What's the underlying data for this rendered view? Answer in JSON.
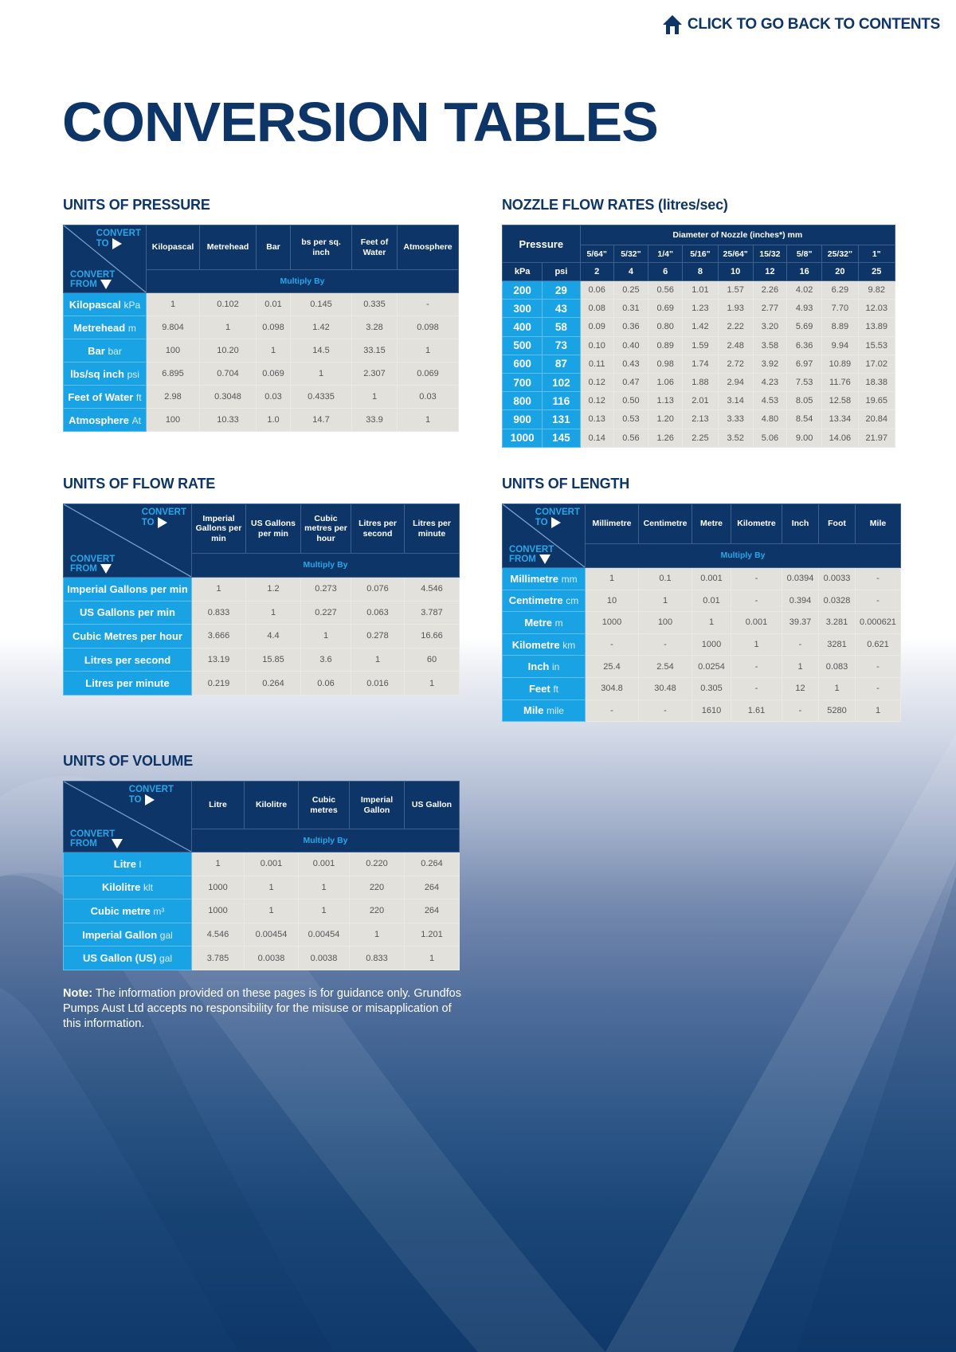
{
  "nav": {
    "back_link": "CLICK TO GO BACK TO CONTENTS",
    "icon": "home-icon"
  },
  "page_title": "CONVERSION TABLES",
  "corner": {
    "to_line1": "CONVERT",
    "to_line2": "TO",
    "from_line1": "CONVERT",
    "from_line2": "FROM"
  },
  "multiply_by": "Multiply By",
  "pressure": {
    "title": "UNITS OF PRESSURE",
    "columns": [
      "Kilopascal",
      "Metrehead",
      "Bar",
      "bs per sq. inch",
      "Feet of Water",
      "Atmosphere"
    ],
    "rows": [
      {
        "label": "Kilopascal",
        "unit": "kPa",
        "values": [
          "1",
          "0.102",
          "0.01",
          "0.145",
          "0.335",
          "-"
        ]
      },
      {
        "label": "Metrehead",
        "unit": "m",
        "values": [
          "9.804",
          "1",
          "0.098",
          "1.42",
          "3.28",
          "0.098"
        ]
      },
      {
        "label": "Bar",
        "unit": "bar",
        "values": [
          "100",
          "10.20",
          "1",
          "14.5",
          "33.15",
          "1"
        ]
      },
      {
        "label": "lbs/sq inch",
        "unit": "psi",
        "values": [
          "6.895",
          "0.704",
          "0.069",
          "1",
          "2.307",
          "0.069"
        ]
      },
      {
        "label": "Feet of Water",
        "unit": "ft",
        "values": [
          "2.98",
          "0.3048",
          "0.03",
          "0.4335",
          "1",
          "0.03"
        ]
      },
      {
        "label": "Atmosphere",
        "unit": "At",
        "values": [
          "100",
          "10.33",
          "1.0",
          "14.7",
          "33.9",
          "1"
        ]
      }
    ]
  },
  "nozzle": {
    "title": "NOZZLE FLOW RATES (litres/sec)",
    "pressure_label": "Pressure",
    "diameter_label": "Diameter of Nozzle (inches*) mm",
    "kpa_label": "kPa",
    "psi_label": "psi",
    "inches": [
      "5/64\"",
      "5/32\"",
      "1/4\"",
      "5/16\"",
      "25/64\"",
      "15/32",
      "5/8\"",
      "25/32\"",
      "1\""
    ],
    "mm": [
      "2",
      "4",
      "6",
      "8",
      "10",
      "12",
      "16",
      "20",
      "25"
    ],
    "rows": [
      {
        "kpa": "200",
        "psi": "29",
        "values": [
          "0.06",
          "0.25",
          "0.56",
          "1.01",
          "1.57",
          "2.26",
          "4.02",
          "6.29",
          "9.82"
        ]
      },
      {
        "kpa": "300",
        "psi": "43",
        "values": [
          "0.08",
          "0.31",
          "0.69",
          "1.23",
          "1.93",
          "2.77",
          "4.93",
          "7.70",
          "12.03"
        ]
      },
      {
        "kpa": "400",
        "psi": "58",
        "values": [
          "0.09",
          "0.36",
          "0.80",
          "1.42",
          "2.22",
          "3.20",
          "5.69",
          "8.89",
          "13.89"
        ]
      },
      {
        "kpa": "500",
        "psi": "73",
        "values": [
          "0.10",
          "0.40",
          "0.89",
          "1.59",
          "2.48",
          "3.58",
          "6.36",
          "9.94",
          "15.53"
        ]
      },
      {
        "kpa": "600",
        "psi": "87",
        "values": [
          "0.11",
          "0.43",
          "0.98",
          "1.74",
          "2.72",
          "3.92",
          "6.97",
          "10.89",
          "17.02"
        ]
      },
      {
        "kpa": "700",
        "psi": "102",
        "values": [
          "0.12",
          "0.47",
          "1.06",
          "1.88",
          "2.94",
          "4.23",
          "7.53",
          "11.76",
          "18.38"
        ]
      },
      {
        "kpa": "800",
        "psi": "116",
        "values": [
          "0.12",
          "0.50",
          "1.13",
          "2.01",
          "3.14",
          "4.53",
          "8.05",
          "12.58",
          "19.65"
        ]
      },
      {
        "kpa": "900",
        "psi": "131",
        "values": [
          "0.13",
          "0.53",
          "1.20",
          "2.13",
          "3.33",
          "4.80",
          "8.54",
          "13.34",
          "20.84"
        ]
      },
      {
        "kpa": "1000",
        "psi": "145",
        "values": [
          "0.14",
          "0.56",
          "1.26",
          "2.25",
          "3.52",
          "5.06",
          "9.00",
          "14.06",
          "21.97"
        ]
      }
    ]
  },
  "flow": {
    "title": "UNITS OF FLOW RATE",
    "columns": [
      "Imperial Gallons per min",
      "US Gallons per min",
      "Cubic metres per hour",
      "Litres per second",
      "Litres per minute"
    ],
    "rows": [
      {
        "label": "Imperial Gallons per min",
        "unit": "",
        "values": [
          "1",
          "1.2",
          "0.273",
          "0.076",
          "4.546"
        ]
      },
      {
        "label": "US Gallons per min",
        "unit": "",
        "values": [
          "0.833",
          "1",
          "0.227",
          "0.063",
          "3.787"
        ]
      },
      {
        "label": "Cubic Metres per hour",
        "unit": "",
        "values": [
          "3.666",
          "4.4",
          "1",
          "0.278",
          "16.66"
        ]
      },
      {
        "label": "Litres per second",
        "unit": "",
        "values": [
          "13.19",
          "15.85",
          "3.6",
          "1",
          "60"
        ]
      },
      {
        "label": "Litres per minute",
        "unit": "",
        "values": [
          "0.219",
          "0.264",
          "0.06",
          "0.016",
          "1"
        ]
      }
    ]
  },
  "length": {
    "title": "UNITS OF LENGTH",
    "columns": [
      "Millimetre",
      "Centimetre",
      "Metre",
      "Kilometre",
      "Inch",
      "Foot",
      "Mile"
    ],
    "rows": [
      {
        "label": "Millimetre",
        "unit": "mm",
        "values": [
          "1",
          "0.1",
          "0.001",
          "-",
          "0.0394",
          "0.0033",
          "-"
        ]
      },
      {
        "label": "Centimetre",
        "unit": "cm",
        "values": [
          "10",
          "1",
          "0.01",
          "-",
          "0.394",
          "0.0328",
          "-"
        ]
      },
      {
        "label": "Metre",
        "unit": "m",
        "values": [
          "1000",
          "100",
          "1",
          "0.001",
          "39.37",
          "3.281",
          "0.000621"
        ]
      },
      {
        "label": "Kilometre",
        "unit": "km",
        "values": [
          "-",
          "-",
          "1000",
          "1",
          "-",
          "3281",
          "0.621"
        ]
      },
      {
        "label": "Inch",
        "unit": "in",
        "values": [
          "25.4",
          "2.54",
          "0.0254",
          "-",
          "1",
          "0.083",
          "-"
        ]
      },
      {
        "label": "Feet",
        "unit": "ft",
        "values": [
          "304.8",
          "30.48",
          "0.305",
          "-",
          "12",
          "1",
          "-"
        ]
      },
      {
        "label": "Mile",
        "unit": "mile",
        "values": [
          "-",
          "-",
          "1610",
          "1.61",
          "-",
          "5280",
          "1"
        ]
      }
    ]
  },
  "volume": {
    "title": "UNITS OF VOLUME",
    "columns": [
      "Litre",
      "Kilolitre",
      "Cubic metres",
      "Imperial Gallon",
      "US Gallon"
    ],
    "rows": [
      {
        "label": "Litre",
        "unit": "l",
        "values": [
          "1",
          "0.001",
          "0.001",
          "0.220",
          "0.264"
        ]
      },
      {
        "label": "Kilolitre",
        "unit": "klt",
        "values": [
          "1000",
          "1",
          "1",
          "220",
          "264"
        ]
      },
      {
        "label": "Cubic metre",
        "unit": "m³",
        "values": [
          "1000",
          "1",
          "1",
          "220",
          "264"
        ]
      },
      {
        "label": "Imperial Gallon",
        "unit": "gal",
        "values": [
          "4.546",
          "0.00454",
          "0.00454",
          "1",
          "1.201"
        ]
      },
      {
        "label": "US Gallon (US)",
        "unit": "gal",
        "values": [
          "3.785",
          "0.0038",
          "0.0038",
          "0.833",
          "1"
        ]
      }
    ]
  },
  "note": {
    "label": "Note:",
    "text": " The information provided on these pages is for guidance only. Grundfos Pumps Aust Ltd accepts no responsibility for the misuse or misapplication of this information."
  }
}
